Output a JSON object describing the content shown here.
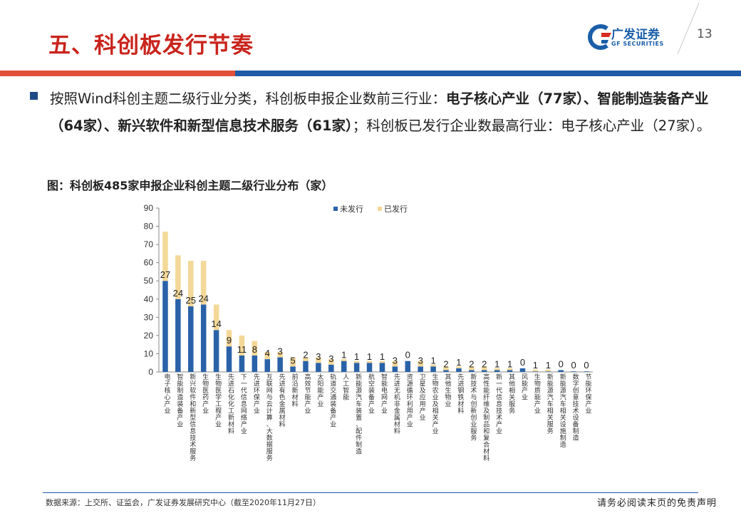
{
  "header": {
    "title": "五、科创板发行节奏",
    "page_number": "13",
    "logo_name": "广发证券",
    "logo_sub": "GF SECURITIES"
  },
  "bullet": {
    "text_1": "按照Wind科创主题二级行业分类，科创板申报企业数前三行业：",
    "bold_1": "电子核心产业（77家）、智能制造装备产业（64家）、新兴软件和新型信息技术服务（61家）",
    "text_2": "；科创板已发行企业数最高行业：电子核心产业（27家）。"
  },
  "figure_caption": "图：科创板485家申报企业科创主题二级行业分布（家）",
  "colors": {
    "unissued": "#2a62a8",
    "issued": "#f3d898",
    "title_red": "#c9241d",
    "accent_blue": "#1e5aa6"
  },
  "chart_data": {
    "type": "bar",
    "stacked": true,
    "ylim": [
      0,
      90
    ],
    "yticks": [
      0,
      10,
      20,
      30,
      40,
      50,
      60,
      70,
      80,
      90
    ],
    "legend_position": "top",
    "categories": [
      "电子核心产业",
      "智能制造装备产业",
      "新兴软件和新型信息技术服务",
      "生物医药产业",
      "生物医学工程产业",
      "先进石化化工新材料",
      "下一代信息网络产业",
      "先进环保产业",
      "互联网与云计算、大数据服务",
      "先进有色金属材料",
      "前沿新材料",
      "高效节能产业",
      "太阳能产业",
      "轨道交通装备产业",
      "人工智能",
      "新能源汽车装置、配件制造",
      "航空装备产业",
      "智能电网产业",
      "先进无机非金属材料",
      "资源循环利用产业",
      "卫星及应用产业",
      "生物农业及相关产业",
      "其他生物业",
      "先进钢铁材料",
      "新技术与创新创业服务",
      "高性能纤维及制品和复合材料",
      "新一代信息技术产业",
      "其他相关服务",
      "风能产业",
      "生物质能产业",
      "新能源汽车相关服务",
      "新能源汽车相关设施制造",
      "数字创意技术设备制造",
      "节能环保产业"
    ],
    "series": [
      {
        "name": "未发行",
        "values": [
          50,
          40,
          36,
          37,
          23,
          14,
          9,
          9,
          7,
          8,
          3,
          6,
          5,
          4,
          6,
          5,
          5,
          5,
          3,
          6,
          3,
          3,
          1,
          2,
          1,
          1,
          1,
          1,
          2,
          0.3,
          0.3,
          1,
          0.3,
          0.3
        ]
      },
      {
        "name": "已发行",
        "values": [
          27,
          24,
          25,
          24,
          14,
          9,
          11,
          8,
          4,
          3,
          5,
          2,
          3,
          3,
          1,
          1,
          1,
          1,
          3,
          0,
          3,
          1,
          2,
          1,
          2,
          2,
          1,
          1,
          0,
          1,
          1,
          0,
          0,
          0
        ]
      }
    ],
    "labels": [
      "27",
      "24",
      "25",
      "24",
      "14",
      "9",
      "11",
      "8",
      "4",
      "3",
      "5",
      "2",
      "3",
      "3",
      "1",
      "1",
      "1",
      "1",
      "3",
      "0",
      "3",
      "1",
      "2",
      "1",
      "2",
      "2",
      "1",
      "1",
      "0",
      "1",
      "1",
      "0",
      "0",
      "0"
    ]
  },
  "source": "数据来源：上交所、证监会，广发证券发展研究中心（截至2020年11月27日）",
  "disclaimer": "请务必阅读末页的免责声明"
}
